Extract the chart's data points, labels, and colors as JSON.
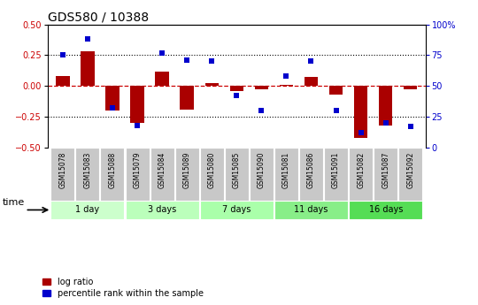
{
  "title": "GDS580 / 10388",
  "samples": [
    "GSM15078",
    "GSM15083",
    "GSM15088",
    "GSM15079",
    "GSM15084",
    "GSM15089",
    "GSM15080",
    "GSM15085",
    "GSM15090",
    "GSM15081",
    "GSM15086",
    "GSM15091",
    "GSM15082",
    "GSM15087",
    "GSM15092"
  ],
  "log_ratio": [
    0.08,
    0.28,
    -0.2,
    -0.3,
    0.12,
    -0.19,
    0.02,
    -0.04,
    -0.03,
    0.01,
    0.07,
    -0.07,
    -0.42,
    -0.32,
    -0.03
  ],
  "percentile_rank": [
    0.75,
    0.88,
    0.32,
    0.18,
    0.77,
    0.71,
    0.7,
    0.42,
    0.3,
    0.58,
    0.7,
    0.3,
    0.12,
    0.2,
    0.17
  ],
  "groups": [
    {
      "label": "1 day",
      "indices": [
        0,
        1,
        2
      ],
      "color": "#ccffcc"
    },
    {
      "label": "3 days",
      "indices": [
        3,
        4,
        5
      ],
      "color": "#bbffbb"
    },
    {
      "label": "7 days",
      "indices": [
        6,
        7,
        8
      ],
      "color": "#aaffaa"
    },
    {
      "label": "11 days",
      "indices": [
        9,
        10,
        11
      ],
      "color": "#88ee88"
    },
    {
      "label": "16 days",
      "indices": [
        12,
        13,
        14
      ],
      "color": "#55dd55"
    }
  ],
  "ylim": [
    -0.5,
    0.5
  ],
  "yticks": [
    -0.5,
    -0.25,
    0.0,
    0.25,
    0.5
  ],
  "right_yticks": [
    0,
    25,
    50,
    75,
    100
  ],
  "right_ytick_labels": [
    "0",
    "25",
    "50",
    "75",
    "100%"
  ],
  "bar_color": "#aa0000",
  "dot_color": "#0000cc",
  "hline_color": "#cc0000",
  "grid_color": "#000000",
  "title_fontsize": 10,
  "tick_fontsize": 7,
  "sample_fontsize": 5.5,
  "group_fontsize": 7,
  "legend_fontsize": 7
}
